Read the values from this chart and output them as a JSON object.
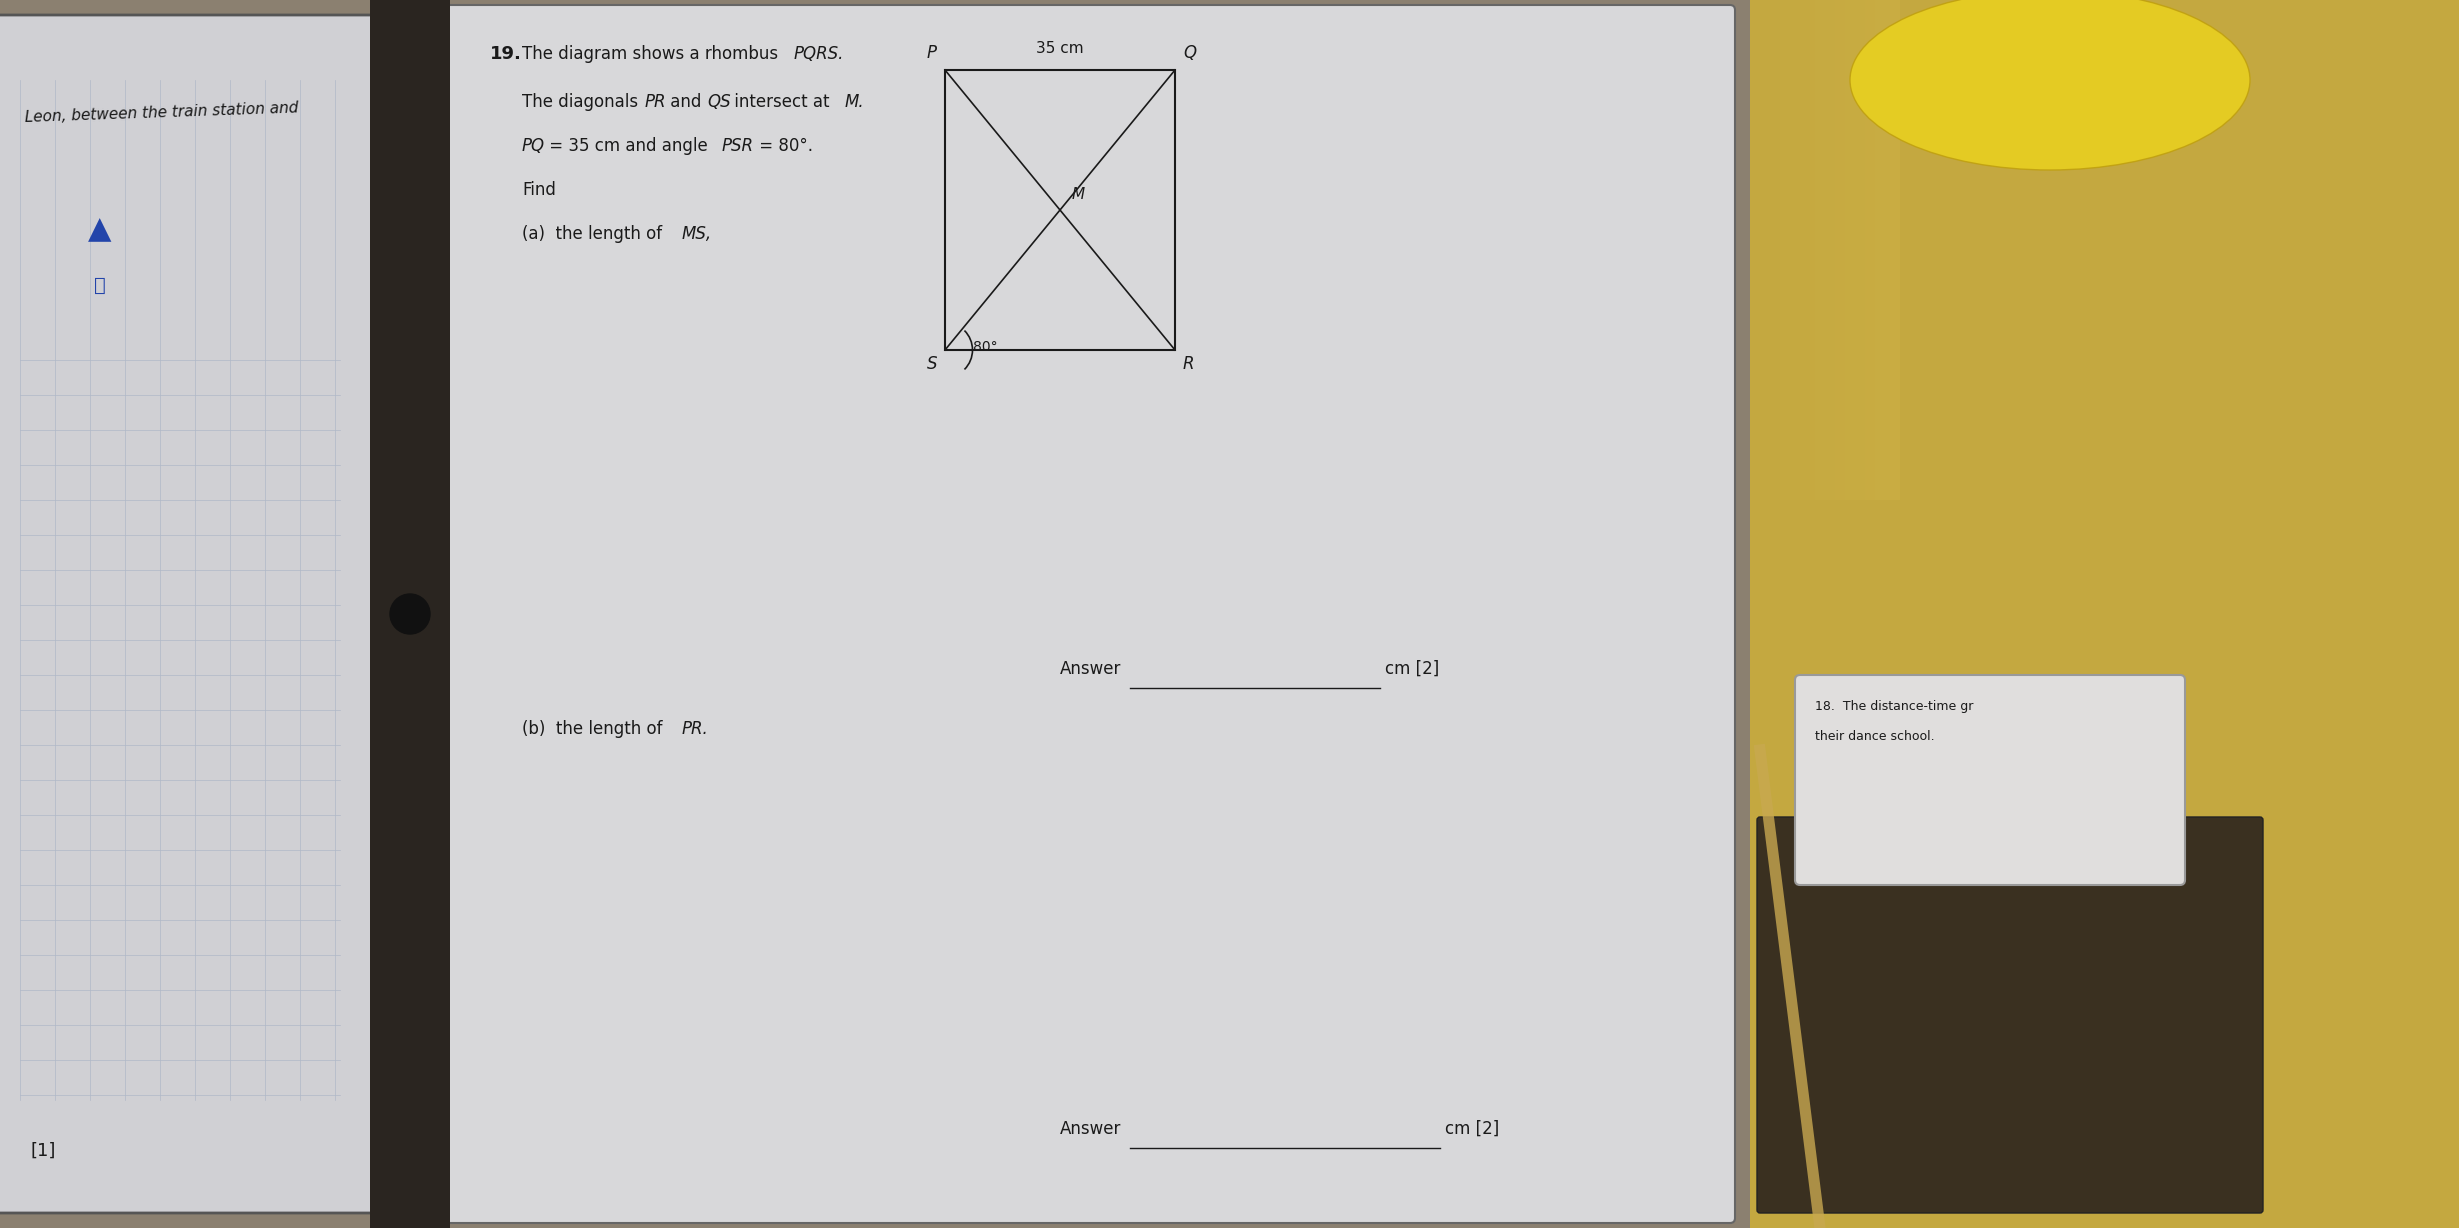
{
  "fig_width": 24.59,
  "fig_height": 12.28,
  "bg_color": "#8a8070",
  "left_page_color": "#d8d8da",
  "right_page_color": "#d4d4d6",
  "spine_color": "#3a3530",
  "left_bg_color": "#b8a878",
  "right_bg_color": "#c8b870",
  "text_color": "#1a1a1a",
  "line_color": "#1a1a1a",
  "grid_color": "#b0b8c8",
  "q_number": "19.",
  "line1_normal": "The diagram shows a rhombus ",
  "line1_italic": "PQRS.",
  "line2_normal1": "The diagonals ",
  "line2_italic1": "PR",
  "line2_normal2": " and ",
  "line2_italic2": "QS",
  "line2_normal3": " intersect at ",
  "line2_italic3": "M.",
  "line3_italic1": "PQ",
  "line3_normal1": " = 35 cm and angle ",
  "line3_italic2": "PSR",
  "line3_normal2": " = 80°.",
  "line4": "Find",
  "part_a_normal": "(a)  the length of ",
  "part_a_italic": "MS,",
  "part_b_normal": "(b)  the length of ",
  "part_b_italic": "PR.",
  "answer_text": "Answer",
  "answer_suffix": "cm [2]",
  "label_1": "[1]",
  "side_text": "Leon, between the train station and",
  "label_18a": "18.  The distance-time gr",
  "label_18b": "their dance school.",
  "rhombus_label_35cm": "35 cm",
  "rhombus_P_label": "P",
  "rhombus_Q_label": "Q",
  "rhombus_R_label": "R",
  "rhombus_S_label": "S",
  "rhombus_M_label": "M",
  "angle_label": "80°"
}
